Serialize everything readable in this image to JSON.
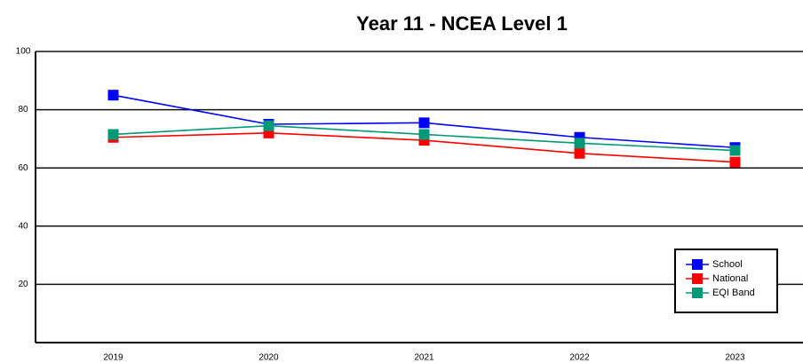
{
  "chart_data": {
    "type": "line",
    "title": "Year 11 - NCEA Level 1",
    "categories": [
      "2019",
      "2020",
      "2021",
      "2022",
      "2023"
    ],
    "series": [
      {
        "name": "School",
        "color": "#0000ff",
        "values": [
          85,
          75,
          75.5,
          70.5,
          67
        ]
      },
      {
        "name": "National",
        "color": "#ff0000",
        "values": [
          70.5,
          72,
          69.5,
          65,
          62
        ]
      },
      {
        "name": "EQI Band",
        "color": "#009977",
        "values": [
          71.5,
          74.5,
          71.5,
          68.5,
          66
        ]
      }
    ],
    "ylim": [
      0,
      100
    ],
    "yticks": [
      20,
      40,
      60,
      80,
      100
    ],
    "grid": true,
    "legend": "lower right"
  }
}
